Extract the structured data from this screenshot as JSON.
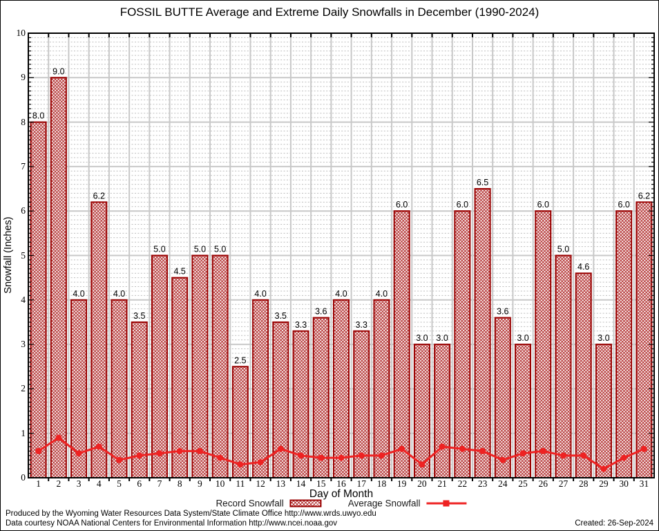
{
  "title": "FOSSIL BUTTE Average and Extreme Daily Snowfalls in December (1990-2024)",
  "chart_data": {
    "type": "bar",
    "x": [
      1,
      2,
      3,
      4,
      5,
      6,
      7,
      8,
      9,
      10,
      11,
      12,
      13,
      14,
      15,
      16,
      17,
      18,
      19,
      20,
      21,
      22,
      23,
      24,
      25,
      26,
      27,
      28,
      29,
      30,
      31
    ],
    "series": [
      {
        "name": "Record Snowfall",
        "type": "bar",
        "values": [
          8.0,
          9.0,
          4.0,
          6.2,
          4.0,
          3.5,
          5.0,
          4.5,
          5.0,
          5.0,
          2.5,
          4.0,
          3.5,
          3.3,
          3.6,
          4.0,
          3.3,
          4.0,
          6.0,
          3.0,
          3.0,
          6.0,
          6.5,
          3.6,
          3.0,
          6.0,
          5.0,
          4.6,
          3.0,
          6.0,
          6.2
        ]
      },
      {
        "name": "Average Snowfall",
        "type": "line",
        "values": [
          0.6,
          0.9,
          0.55,
          0.7,
          0.4,
          0.5,
          0.55,
          0.6,
          0.6,
          0.45,
          0.3,
          0.35,
          0.65,
          0.5,
          0.45,
          0.45,
          0.5,
          0.5,
          0.65,
          0.3,
          0.7,
          0.65,
          0.6,
          0.4,
          0.55,
          0.6,
          0.5,
          0.5,
          0.2,
          0.45,
          0.65
        ]
      }
    ],
    "xlabel": "Day of Month",
    "ylabel": "Snowfall (Inches)",
    "ylim": [
      0,
      10
    ],
    "y_major_ticks": [
      0,
      1,
      2,
      3,
      4,
      5,
      6,
      7,
      8,
      9,
      10
    ],
    "bar_value_labels_shown": true,
    "grid": {
      "major": "solid",
      "minor": "dotted",
      "minor_step": 0.1
    },
    "legend_position": "bottom",
    "colors": {
      "bar_border": "#990000",
      "bar_hatch": "#b43434",
      "avg_line": "#ee2222",
      "grid_major": "#c8c8c8",
      "grid_minor": "#bdbdbd",
      "axis": "#000000",
      "text": "#000000"
    }
  },
  "footer": {
    "line1": "Produced by the Wyoming Water Resources Data System/State Climate Office http://www.wrds.uwyo.edu",
    "line2": "Data courtesy NOAA National Centers for Environmental Information http://www.ncei.noaa.gov",
    "created": "Created: 26-Sep-2024"
  }
}
